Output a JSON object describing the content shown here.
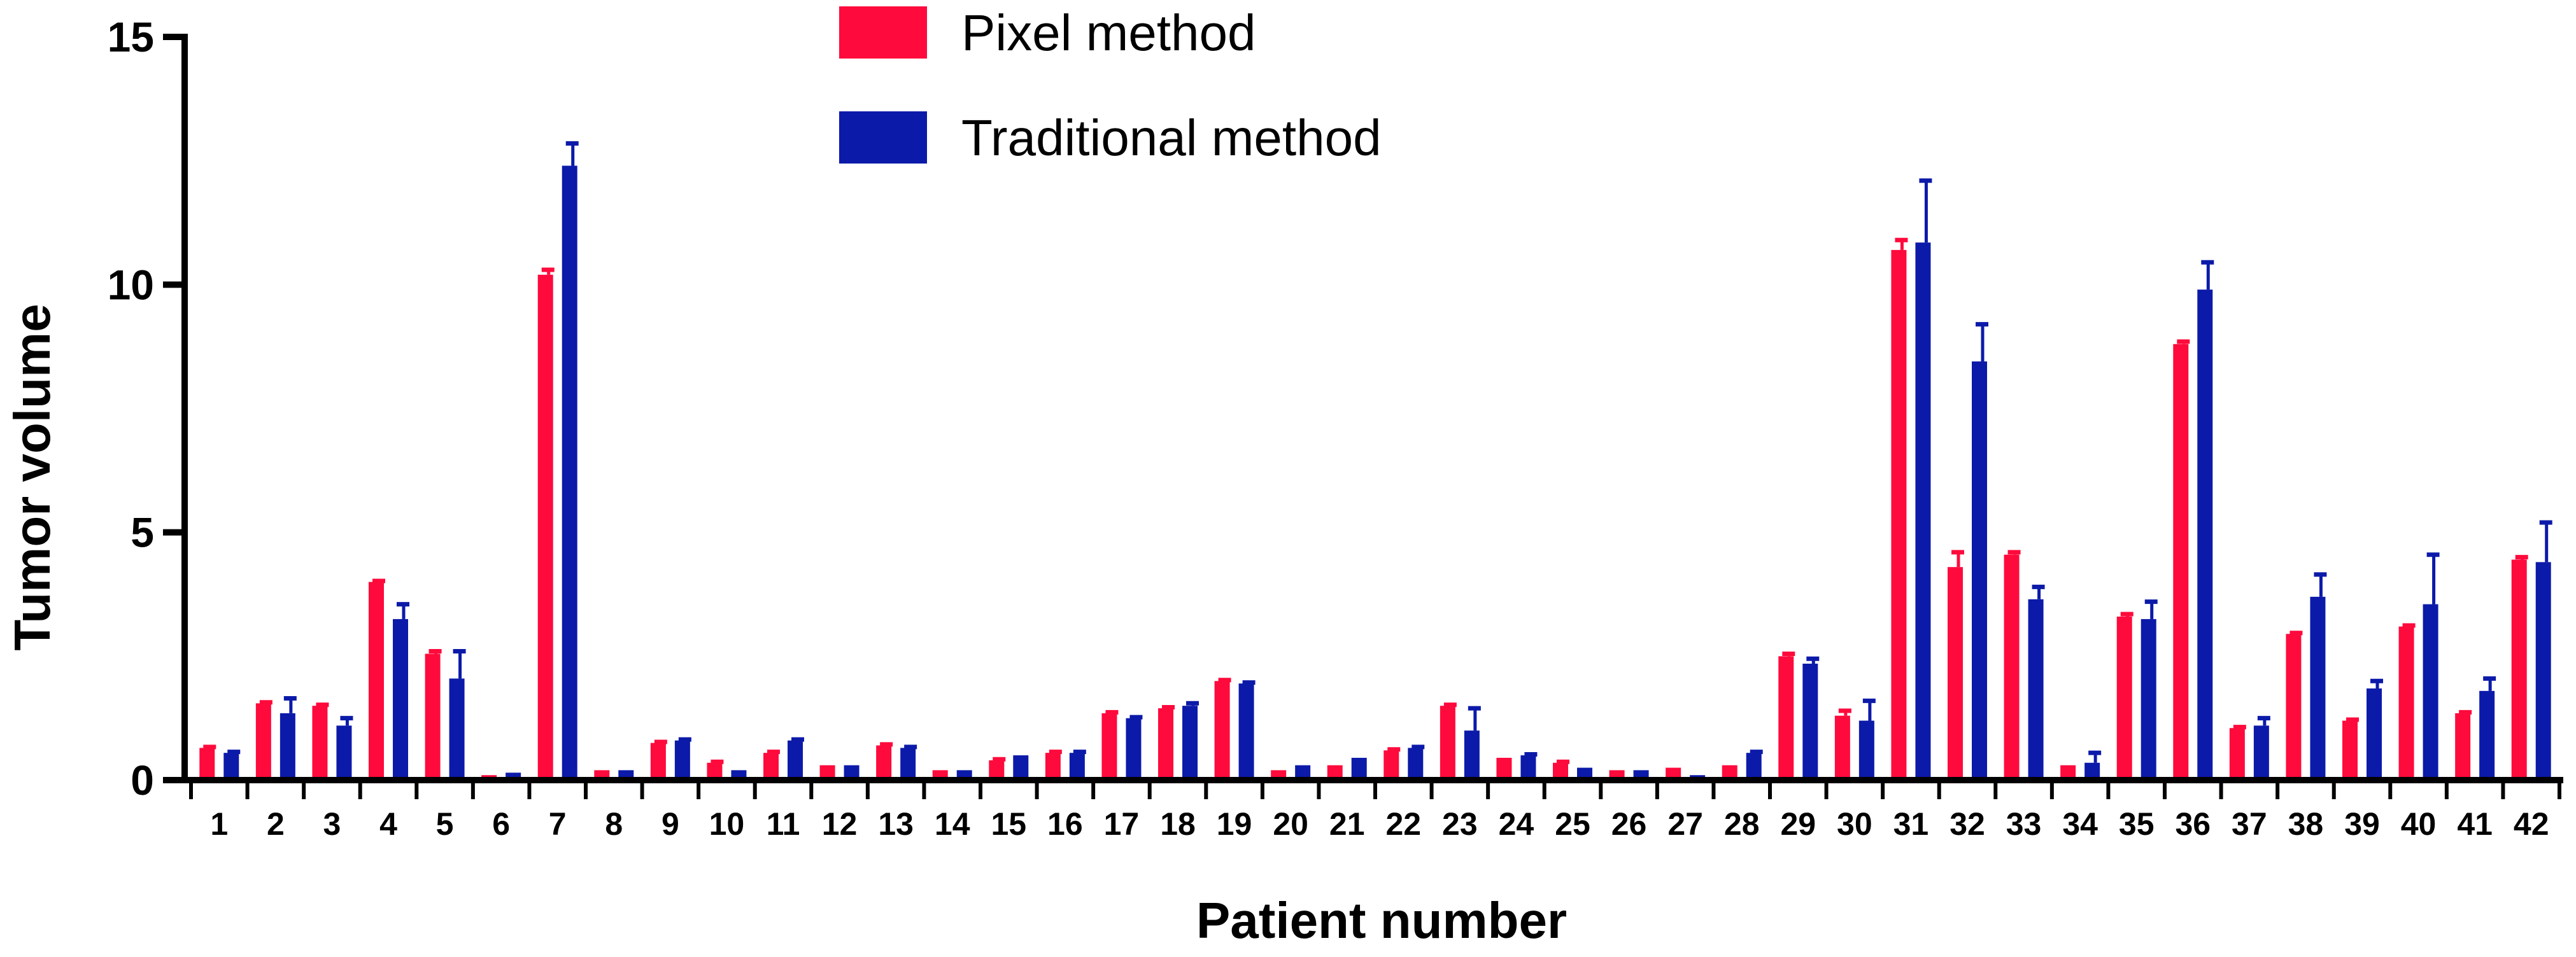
{
  "chart_data": {
    "type": "bar",
    "title": "",
    "xlabel": "Patient number",
    "ylabel": "Tumor volume",
    "ylim": [
      0,
      15
    ],
    "y_ticks": [
      0,
      5,
      10,
      15
    ],
    "grid": false,
    "legend_position": "top-center",
    "error_bars": true,
    "categories": [
      "1",
      "2",
      "3",
      "4",
      "5",
      "6",
      "7",
      "8",
      "9",
      "10",
      "11",
      "12",
      "13",
      "14",
      "15",
      "16",
      "17",
      "18",
      "19",
      "20",
      "21",
      "22",
      "23",
      "24",
      "25",
      "26",
      "27",
      "28",
      "29",
      "30",
      "31",
      "32",
      "33",
      "34",
      "35",
      "36",
      "37",
      "38",
      "39",
      "40",
      "41",
      "42"
    ],
    "series": [
      {
        "name": "Pixel method",
        "color": "#FF0A3C",
        "values": [
          0.65,
          1.55,
          1.5,
          4.0,
          2.55,
          0.1,
          10.2,
          0.2,
          0.75,
          0.35,
          0.55,
          0.3,
          0.7,
          0.2,
          0.4,
          0.55,
          1.35,
          1.45,
          2.0,
          0.2,
          0.3,
          0.6,
          1.5,
          0.45,
          0.35,
          0.2,
          0.25,
          0.3,
          2.5,
          1.3,
          10.7,
          4.3,
          4.55,
          0.3,
          3.3,
          8.8,
          1.05,
          2.95,
          1.2,
          3.1,
          1.35,
          4.45
        ],
        "errors": [
          0.02,
          0.02,
          0.02,
          0.02,
          0.05,
          0.0,
          0.1,
          0.0,
          0.02,
          0.02,
          0.02,
          0.0,
          0.02,
          0.0,
          0.02,
          0.02,
          0.02,
          0.02,
          0.02,
          0.0,
          0.0,
          0.02,
          0.02,
          0.0,
          0.02,
          0.0,
          0.0,
          0.0,
          0.05,
          0.1,
          0.2,
          0.3,
          0.05,
          0.0,
          0.05,
          0.05,
          0.02,
          0.02,
          0.02,
          0.02,
          0.02,
          0.05
        ]
      },
      {
        "name": "Traditional method",
        "color": "#0C1AA9",
        "values": [
          0.55,
          1.35,
          1.1,
          3.25,
          2.05,
          0.15,
          12.4,
          0.2,
          0.8,
          0.2,
          0.8,
          0.3,
          0.65,
          0.2,
          0.5,
          0.55,
          1.25,
          1.5,
          1.95,
          0.3,
          0.45,
          0.65,
          1.0,
          0.5,
          0.25,
          0.2,
          0.1,
          0.55,
          2.35,
          1.2,
          10.85,
          8.45,
          3.65,
          0.35,
          3.25,
          9.9,
          1.1,
          3.7,
          1.85,
          3.55,
          1.8,
          4.4
        ],
        "errors": [
          0.02,
          0.3,
          0.15,
          0.3,
          0.55,
          0.0,
          0.45,
          0.0,
          0.02,
          0.0,
          0.02,
          0.0,
          0.02,
          0.0,
          0.0,
          0.02,
          0.02,
          0.05,
          0.02,
          0.0,
          0.0,
          0.02,
          0.45,
          0.02,
          0.0,
          0.0,
          0.0,
          0.02,
          0.1,
          0.4,
          1.25,
          0.75,
          0.25,
          0.2,
          0.35,
          0.55,
          0.15,
          0.45,
          0.15,
          1.0,
          0.25,
          0.8
        ]
      }
    ]
  }
}
